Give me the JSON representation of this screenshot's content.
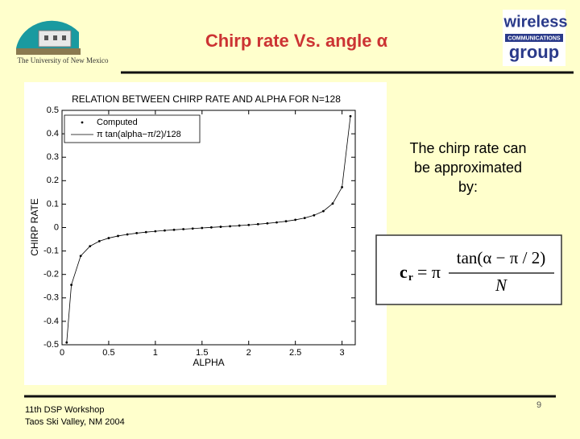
{
  "header": {
    "title": "Chirp rate Vs. angle α",
    "left_logo": "The University of New Mexico",
    "right_logo": [
      "wireless",
      "COMMUNICATIONS",
      "group"
    ]
  },
  "text": {
    "lines": [
      "The chirp rate can",
      "be approximated",
      "by:"
    ]
  },
  "formula": {
    "lhs": "c",
    "subscript": "r",
    "eq": "= π",
    "numerator": "tan(α − π / 2)",
    "denominator": "N"
  },
  "footer": {
    "lines": [
      "11th DSP Workshop",
      "Taos Ski Valley, NM 2004"
    ],
    "page": "9"
  },
  "chart_data": {
    "type": "scatter-line",
    "title": "RELATION BETWEEN CHIRP RATE AND ALPHA FOR N=128",
    "x_label": "ALPHA",
    "y_label": "CHIRP RATE",
    "x": [
      0.05,
      0.1,
      0.2,
      0.3,
      0.4,
      0.5,
      0.6,
      0.7,
      0.8,
      0.9,
      1.0,
      1.1,
      1.2,
      1.3,
      1.4,
      1.5,
      1.6,
      1.7,
      1.8,
      1.9,
      2.0,
      2.1,
      2.2,
      2.3,
      2.4,
      2.5,
      2.6,
      2.7,
      2.8,
      2.9,
      3.0,
      3.09
    ],
    "series": [
      {
        "name": "Computed",
        "color": "#000000",
        "style": "dots",
        "values": [
          -0.4904,
          -0.2446,
          -0.1211,
          -0.0794,
          -0.058,
          -0.0449,
          -0.0359,
          -0.0291,
          -0.0238,
          -0.0195,
          -0.0158,
          -0.0125,
          -0.0096,
          -0.0068,
          -0.0042,
          -0.0017,
          0.0007,
          0.0032,
          0.0057,
          0.0084,
          0.0112,
          0.0144,
          0.0179,
          0.0219,
          0.0268,
          0.0329,
          0.0409,
          0.0522,
          0.0701,
          0.1024,
          0.1722,
          0.4752
        ]
      },
      {
        "name": "π tan(alpha−π/2)/128",
        "color": "#000000",
        "style": "line",
        "values": [
          -0.4904,
          -0.2446,
          -0.1211,
          -0.0794,
          -0.058,
          -0.0449,
          -0.0359,
          -0.0291,
          -0.0238,
          -0.0195,
          -0.0158,
          -0.0125,
          -0.0096,
          -0.0068,
          -0.0042,
          -0.0017,
          0.0007,
          0.0032,
          0.0057,
          0.0084,
          0.0112,
          0.0144,
          0.0179,
          0.0219,
          0.0268,
          0.0329,
          0.0409,
          0.0522,
          0.0701,
          0.1024,
          0.1722,
          0.4752
        ]
      }
    ],
    "xlim": [
      0,
      3.1416
    ],
    "xticks": [
      0,
      0.5,
      1,
      1.5,
      2,
      2.5,
      3
    ],
    "ylim": [
      -0.5,
      0.5
    ],
    "yticks": [
      -0.5,
      -0.4,
      -0.3,
      -0.2,
      -0.1,
      0,
      0.1,
      0.2,
      0.3,
      0.4,
      0.5
    ],
    "legend": "upper-left",
    "grid": false
  }
}
